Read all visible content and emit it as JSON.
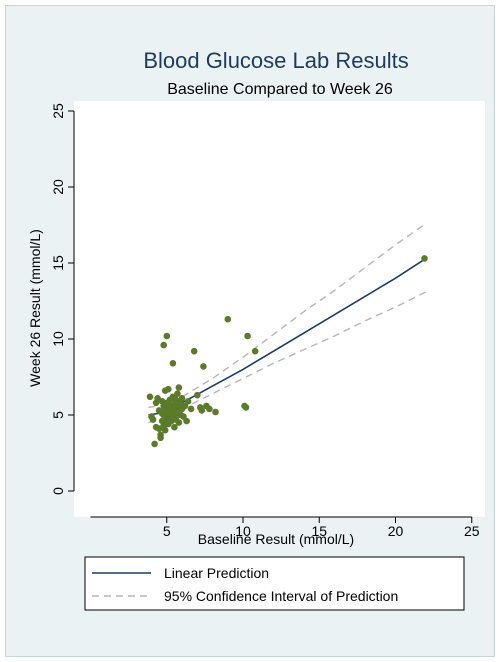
{
  "chart_data": {
    "type": "scatter",
    "title": "Blood Glucose Lab Results",
    "subtitle": "Baseline Compared to Week 26",
    "xlabel": "Baseline Result (mmol/L)",
    "ylabel": "Week 26 Result (mmol/L)",
    "xlim": [
      0,
      25
    ],
    "ylim": [
      0,
      25
    ],
    "xticks": [
      "5",
      "10",
      "15",
      "20",
      "25"
    ],
    "yticks": [
      "0",
      "5",
      "10",
      "15",
      "20",
      "25"
    ],
    "grid": false,
    "legend_position": "bottom",
    "points": [
      [
        3.9,
        6.2
      ],
      [
        4.0,
        4.9
      ],
      [
        4.1,
        4.7
      ],
      [
        4.2,
        3.1
      ],
      [
        4.3,
        4.2
      ],
      [
        4.3,
        5.8
      ],
      [
        4.4,
        6.1
      ],
      [
        4.5,
        4.1
      ],
      [
        4.5,
        5.3
      ],
      [
        4.6,
        3.5
      ],
      [
        4.6,
        3.7
      ],
      [
        4.7,
        4.6
      ],
      [
        4.7,
        5.1
      ],
      [
        4.7,
        5.9
      ],
      [
        4.8,
        4.3
      ],
      [
        4.8,
        5.0
      ],
      [
        4.8,
        5.6
      ],
      [
        4.8,
        9.6
      ],
      [
        4.9,
        4.0
      ],
      [
        4.9,
        4.8
      ],
      [
        4.9,
        5.4
      ],
      [
        4.9,
        6.6
      ],
      [
        5.0,
        4.5
      ],
      [
        5.0,
        5.2
      ],
      [
        5.0,
        5.8
      ],
      [
        5.0,
        10.2
      ],
      [
        5.1,
        4.4
      ],
      [
        5.1,
        5.0
      ],
      [
        5.1,
        5.5
      ],
      [
        5.1,
        6.7
      ],
      [
        5.2,
        4.8
      ],
      [
        5.2,
        5.3
      ],
      [
        5.2,
        6.0
      ],
      [
        5.3,
        4.6
      ],
      [
        5.3,
        5.1
      ],
      [
        5.3,
        5.6
      ],
      [
        5.4,
        4.9
      ],
      [
        5.4,
        5.4
      ],
      [
        5.4,
        6.2
      ],
      [
        5.4,
        8.4
      ],
      [
        5.5,
        4.2
      ],
      [
        5.5,
        5.0
      ],
      [
        5.5,
        5.7
      ],
      [
        5.6,
        4.7
      ],
      [
        5.6,
        5.3
      ],
      [
        5.6,
        6.0
      ],
      [
        5.7,
        5.5
      ],
      [
        5.7,
        6.4
      ],
      [
        5.8,
        4.5
      ],
      [
        5.8,
        5.2
      ],
      [
        5.8,
        6.8
      ],
      [
        5.9,
        5.0
      ],
      [
        5.9,
        5.8
      ],
      [
        6.0,
        5.4
      ],
      [
        6.0,
        6.1
      ],
      [
        6.1,
        4.9
      ],
      [
        6.2,
        5.6
      ],
      [
        6.3,
        4.6
      ],
      [
        6.4,
        5.9
      ],
      [
        6.6,
        5.4
      ],
      [
        6.8,
        9.2
      ],
      [
        7.0,
        6.3
      ],
      [
        7.2,
        5.5
      ],
      [
        7.3,
        5.3
      ],
      [
        7.4,
        8.2
      ],
      [
        7.6,
        5.6
      ],
      [
        7.8,
        5.4
      ],
      [
        8.2,
        5.2
      ],
      [
        9.0,
        11.3
      ],
      [
        10.1,
        5.6
      ],
      [
        10.2,
        5.5
      ],
      [
        10.3,
        10.2
      ],
      [
        10.8,
        9.2
      ],
      [
        21.9,
        15.3
      ]
    ],
    "series": [
      {
        "name": "Linear Prediction",
        "color": "#1a3c66",
        "style": "solid",
        "x": [
          3.8,
          5,
          6,
          8,
          10,
          12,
          14,
          16,
          18,
          20,
          22
        ],
        "y": [
          5.0,
          5.2,
          5.8,
          6.9,
          8.0,
          9.2,
          10.4,
          11.6,
          12.8,
          14.0,
          15.3
        ]
      },
      {
        "name": "95% Confidence Interval of Prediction",
        "color": "#b5b5b5",
        "style": "dashed",
        "x": [
          3.8,
          5,
          6,
          8,
          10,
          12,
          14,
          16,
          18,
          20,
          22
        ],
        "y": [
          4.5,
          4.8,
          5.4,
          6.4,
          7.4,
          8.4,
          9.3,
          10.2,
          11.2,
          12.1,
          13.1
        ]
      },
      {
        "name": "",
        "color": "#b5b5b5",
        "style": "dashed",
        "x": [
          3.8,
          5,
          6,
          8,
          10,
          12,
          14,
          16,
          18,
          20,
          22
        ],
        "y": [
          5.5,
          5.7,
          6.2,
          7.4,
          8.8,
          10.3,
          11.8,
          13.2,
          14.7,
          16.2,
          17.6
        ]
      }
    ],
    "point_color": "#5b7a2a",
    "legend": [
      "Linear Prediction",
      "95% Confidence Interval of Prediction"
    ]
  }
}
